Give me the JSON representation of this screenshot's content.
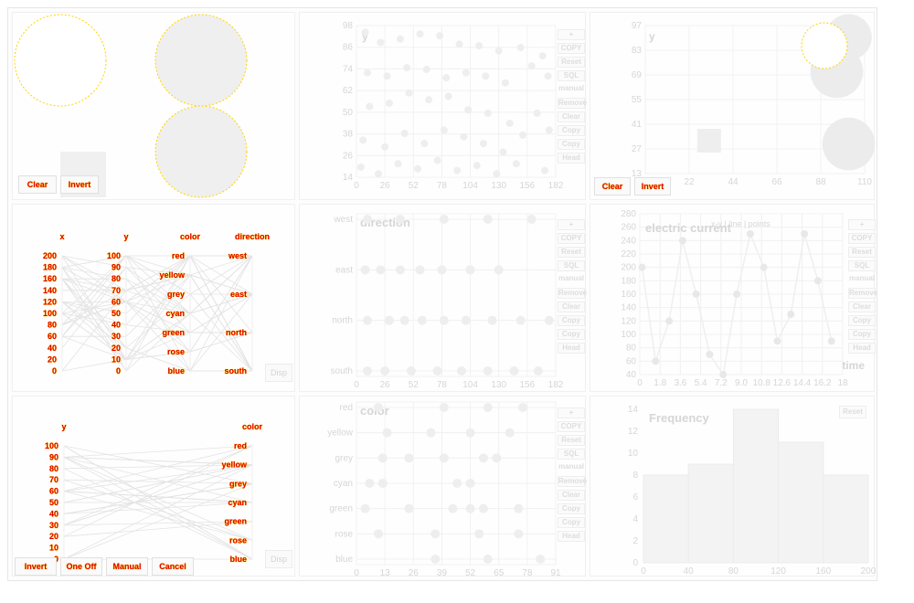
{
  "colors": {
    "label_red": "#e00000",
    "label_glow": "#ffd400",
    "faint": "#e8e8e8",
    "bar_fill": "#f5f5f5",
    "circle_fill": "#eeeeee"
  },
  "toolbar": {
    "labels": [
      "+",
      "COPY",
      "Reset",
      "SQL",
      "manual",
      "Remove",
      "Clear",
      "Copy",
      "Copy",
      "Head"
    ],
    "disp_label": "Disp",
    "reset_label": "Reset"
  },
  "bubble_panel": {
    "btn_a": "Clear",
    "btn_b": "Invert"
  },
  "bubble_panel_right": {
    "btn_a": "Clear",
    "btn_b": "Invert"
  },
  "parallel_top": {
    "axes": [
      "x",
      "y",
      "color",
      "direction"
    ],
    "x_ticks": [
      "200",
      "180",
      "160",
      "140",
      "120",
      "100",
      "80",
      "60",
      "40",
      "20",
      "0"
    ],
    "y_ticks": [
      "100",
      "90",
      "80",
      "70",
      "60",
      "50",
      "40",
      "30",
      "20",
      "10",
      "0"
    ],
    "color_values": [
      "red",
      "yellow",
      "grey",
      "cyan",
      "green",
      "rose",
      "blue"
    ],
    "direction_values": [
      "west",
      "east",
      "north",
      "south"
    ]
  },
  "parallel_bottom": {
    "axes": [
      "y",
      "color"
    ],
    "y_ticks": [
      "100",
      "90",
      "80",
      "70",
      "60",
      "50",
      "40",
      "30",
      "20",
      "10",
      "0"
    ],
    "color_values": [
      "red",
      "yellow",
      "grey",
      "cyan",
      "green",
      "rose",
      "blue"
    ],
    "buttons": [
      "Invert",
      "One Off",
      "Manual",
      "Cancel"
    ]
  },
  "chart_data": [
    {
      "type": "scatter",
      "title": "",
      "ylabel": "y",
      "x_ticks": [
        "0",
        "26",
        "52",
        "78",
        "104",
        "130",
        "156",
        "182"
      ],
      "y_ticks": [
        "98",
        "86",
        "74",
        "62",
        "50",
        "38",
        "26",
        "14"
      ],
      "xlim": [
        0,
        182
      ],
      "ylim": [
        10,
        100
      ],
      "points": [
        [
          8,
          96
        ],
        [
          22,
          90
        ],
        [
          40,
          92
        ],
        [
          58,
          95
        ],
        [
          76,
          94
        ],
        [
          94,
          89
        ],
        [
          112,
          88
        ],
        [
          130,
          85
        ],
        [
          150,
          87
        ],
        [
          170,
          82
        ],
        [
          10,
          72
        ],
        [
          28,
          70
        ],
        [
          46,
          75
        ],
        [
          64,
          74
        ],
        [
          82,
          69
        ],
        [
          100,
          72
        ],
        [
          118,
          70
        ],
        [
          136,
          66
        ],
        [
          160,
          76
        ],
        [
          175,
          70
        ],
        [
          12,
          52
        ],
        [
          30,
          54
        ],
        [
          48,
          60
        ],
        [
          66,
          56
        ],
        [
          84,
          58
        ],
        [
          102,
          50
        ],
        [
          120,
          48
        ],
        [
          140,
          42
        ],
        [
          165,
          48
        ],
        [
          6,
          32
        ],
        [
          26,
          28
        ],
        [
          44,
          36
        ],
        [
          62,
          30
        ],
        [
          80,
          38
        ],
        [
          98,
          34
        ],
        [
          116,
          30
        ],
        [
          134,
          25
        ],
        [
          152,
          35
        ],
        [
          176,
          38
        ],
        [
          4,
          16
        ],
        [
          20,
          12
        ],
        [
          38,
          18
        ],
        [
          56,
          15
        ],
        [
          74,
          20
        ],
        [
          92,
          14
        ],
        [
          110,
          17
        ],
        [
          128,
          12
        ],
        [
          146,
          18
        ],
        [
          172,
          14
        ]
      ]
    },
    {
      "type": "scatter",
      "title": "",
      "ylabel": "y",
      "x_ticks": [
        "0",
        "22",
        "44",
        "66",
        "88",
        "110"
      ],
      "y_ticks": [
        "97",
        "83",
        "69",
        "55",
        "41",
        "27",
        "13"
      ],
      "xlim": [
        0,
        110
      ],
      "ylim": [
        10,
        100
      ],
      "points": [
        [
          102,
          93,
          14
        ],
        [
          96,
          72,
          16
        ],
        [
          102,
          28,
          16
        ],
        [
          32,
          30,
          8
        ]
      ]
    },
    {
      "type": "scatter",
      "title": "direction",
      "ylabel": "",
      "categories": [
        "west",
        "east",
        "north",
        "south"
      ],
      "x_ticks": [
        "0",
        "26",
        "52",
        "78",
        "104",
        "130",
        "156",
        "182"
      ],
      "xlim": [
        0,
        182
      ],
      "points": [
        [
          10,
          "west"
        ],
        [
          40,
          "west"
        ],
        [
          80,
          "west"
        ],
        [
          120,
          "west"
        ],
        [
          160,
          "west"
        ],
        [
          8,
          "east"
        ],
        [
          22,
          "east"
        ],
        [
          40,
          "east"
        ],
        [
          58,
          "east"
        ],
        [
          78,
          "east"
        ],
        [
          104,
          "east"
        ],
        [
          130,
          "east"
        ],
        [
          10,
          "north"
        ],
        [
          30,
          "north"
        ],
        [
          44,
          "north"
        ],
        [
          60,
          "north"
        ],
        [
          80,
          "north"
        ],
        [
          100,
          "north"
        ],
        [
          124,
          "north"
        ],
        [
          150,
          "north"
        ],
        [
          176,
          "north"
        ],
        [
          10,
          "south"
        ],
        [
          26,
          "south"
        ],
        [
          50,
          "south"
        ],
        [
          74,
          "south"
        ],
        [
          96,
          "south"
        ],
        [
          120,
          "south"
        ],
        [
          144,
          "south"
        ],
        [
          166,
          "south"
        ]
      ]
    },
    {
      "type": "line",
      "title": "electric current",
      "ylabel": "",
      "xlabel": "time",
      "legend": "x-y | line | points",
      "x_ticks": [
        "0",
        "1.8",
        "3.6",
        "5.4",
        "7.2",
        "9.0",
        "10.8",
        "12.6",
        "14.4",
        "16.2",
        "18"
      ],
      "y_ticks": [
        "280",
        "260",
        "240",
        "220",
        "200",
        "180",
        "160",
        "140",
        "120",
        "100",
        "80",
        "60",
        "40"
      ],
      "xlim": [
        0,
        18
      ],
      "ylim": [
        40,
        280
      ],
      "x": [
        0.2,
        1.4,
        2.6,
        3.8,
        5.0,
        6.2,
        7.4,
        8.6,
        9.8,
        11.0,
        12.2,
        13.4,
        14.6,
        15.8,
        17.0
      ],
      "y": [
        200,
        60,
        120,
        240,
        160,
        70,
        40,
        160,
        250,
        200,
        90,
        130,
        250,
        180,
        90
      ]
    },
    {
      "type": "scatter",
      "title": "color",
      "ylabel": "",
      "categories": [
        "red",
        "yellow",
        "grey",
        "cyan",
        "green",
        "rose",
        "blue"
      ],
      "x_ticks": [
        "0",
        "13",
        "26",
        "39",
        "52",
        "65",
        "78",
        "91"
      ],
      "xlim": [
        0,
        91
      ],
      "points": [
        [
          10,
          "red"
        ],
        [
          40,
          "red"
        ],
        [
          60,
          "red"
        ],
        [
          76,
          "red"
        ],
        [
          14,
          "yellow"
        ],
        [
          34,
          "yellow"
        ],
        [
          52,
          "yellow"
        ],
        [
          70,
          "yellow"
        ],
        [
          12,
          "grey"
        ],
        [
          24,
          "grey"
        ],
        [
          40,
          "grey"
        ],
        [
          58,
          "grey"
        ],
        [
          64,
          "grey"
        ],
        [
          6,
          "cyan"
        ],
        [
          12,
          "cyan"
        ],
        [
          46,
          "cyan"
        ],
        [
          52,
          "cyan"
        ],
        [
          4,
          "green"
        ],
        [
          24,
          "green"
        ],
        [
          44,
          "green"
        ],
        [
          52,
          "green"
        ],
        [
          58,
          "green"
        ],
        [
          74,
          "green"
        ],
        [
          10,
          "rose"
        ],
        [
          36,
          "rose"
        ],
        [
          56,
          "rose"
        ],
        [
          74,
          "rose"
        ],
        [
          36,
          "blue"
        ],
        [
          60,
          "blue"
        ],
        [
          84,
          "blue"
        ]
      ]
    },
    {
      "type": "bar",
      "title": "Frequency",
      "ylabel": "",
      "x_ticks": [
        "0",
        "40",
        "80",
        "120",
        "160",
        "200"
      ],
      "y_ticks": [
        "0",
        "2",
        "4",
        "6",
        "8",
        "10",
        "12",
        "14"
      ],
      "xlim": [
        0,
        200
      ],
      "ylim": [
        0,
        14
      ],
      "bins": [
        [
          0,
          40
        ],
        [
          40,
          80
        ],
        [
          80,
          120
        ],
        [
          120,
          160
        ],
        [
          160,
          200
        ]
      ],
      "values": [
        8,
        9,
        14,
        11,
        8
      ]
    }
  ]
}
